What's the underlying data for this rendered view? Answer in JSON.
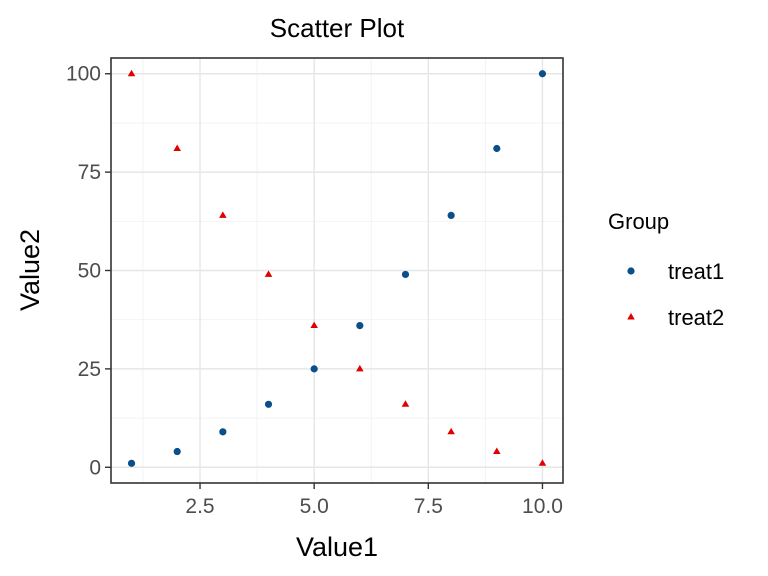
{
  "chart_data": {
    "type": "scatter",
    "title": "Scatter Plot",
    "xlabel": "Value1",
    "ylabel": "Value2",
    "xlim": [
      0.55,
      10.45
    ],
    "ylim": [
      -4.0,
      104.0
    ],
    "x_ticks": [
      2.5,
      5.0,
      7.5,
      10.0
    ],
    "x_tick_labels": [
      "2.5",
      "5.0",
      "7.5",
      "10.0"
    ],
    "y_ticks": [
      0,
      25,
      50,
      75,
      100
    ],
    "y_tick_labels": [
      "0",
      "25",
      "50",
      "75",
      "100"
    ],
    "grid": true,
    "legend": {
      "title": "Group",
      "position": "right"
    },
    "series": [
      {
        "name": "treat1",
        "marker": "circle",
        "color": "#0b4f8a",
        "x": [
          1,
          2,
          3,
          4,
          5,
          6,
          7,
          8,
          9,
          10
        ],
        "y": [
          1,
          4,
          9,
          16,
          25,
          36,
          49,
          64,
          81,
          100
        ]
      },
      {
        "name": "treat2",
        "marker": "triangle",
        "color": "#e00000",
        "x": [
          1,
          2,
          3,
          4,
          5,
          6,
          7,
          8,
          9,
          10
        ],
        "y": [
          100,
          81,
          64,
          49,
          36,
          25,
          16,
          9,
          4,
          1
        ]
      }
    ]
  }
}
